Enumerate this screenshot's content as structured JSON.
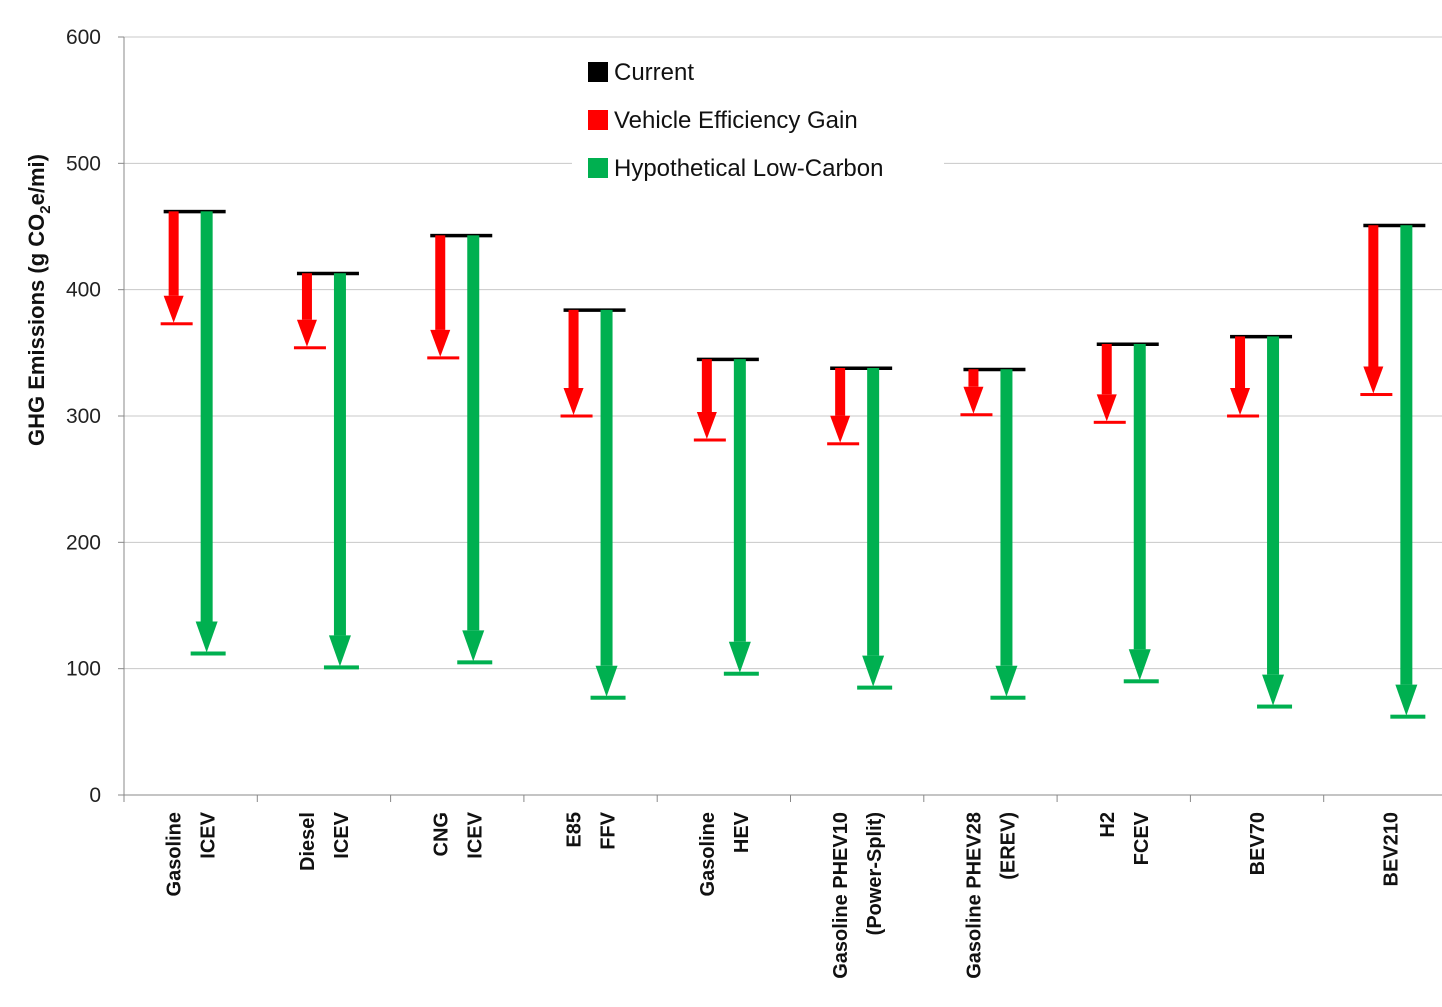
{
  "chart_data": {
    "type": "bar",
    "ylabel": {
      "prefix": "GHG Emissions (g CO",
      "subscript": "2",
      "suffix": "e/mi)"
    },
    "ylim": [
      0,
      600
    ],
    "yticks": [
      0,
      100,
      200,
      300,
      400,
      500,
      600
    ],
    "grid": true,
    "legend_position": "top-center",
    "colors": {
      "current": "#000000",
      "efficiency": "#ff0000",
      "low_carbon": "#00b050"
    },
    "series": [
      {
        "name": "Current",
        "key": "current",
        "values": [
          462,
          413,
          443,
          384,
          345,
          338,
          337,
          357,
          363,
          451
        ]
      },
      {
        "name": "Vehicle Efficiency Gain",
        "key": "efficiency",
        "values": [
          373,
          354,
          346,
          300,
          281,
          278,
          301,
          295,
          300,
          317
        ]
      },
      {
        "name": "Hypothetical Low-Carbon",
        "key": "low_carbon",
        "values": [
          112,
          101,
          105,
          77,
          96,
          85,
          77,
          90,
          70,
          62
        ]
      }
    ],
    "categories": [
      {
        "lines": [
          "Gasoline",
          "ICEV"
        ]
      },
      {
        "lines": [
          "Diesel",
          "ICEV"
        ]
      },
      {
        "lines": [
          "CNG",
          "ICEV"
        ]
      },
      {
        "lines": [
          "E85",
          "FFV"
        ]
      },
      {
        "lines": [
          "Gasoline",
          "HEV"
        ]
      },
      {
        "lines": [
          "Gasoline PHEV10",
          "(Power-Split)"
        ]
      },
      {
        "lines": [
          "Gasoline PHEV28",
          "(EREV)"
        ]
      },
      {
        "lines": [
          "H2",
          "FCEV"
        ]
      },
      {
        "lines": [
          "BEV70"
        ]
      },
      {
        "lines": [
          "BEV210"
        ]
      }
    ]
  }
}
